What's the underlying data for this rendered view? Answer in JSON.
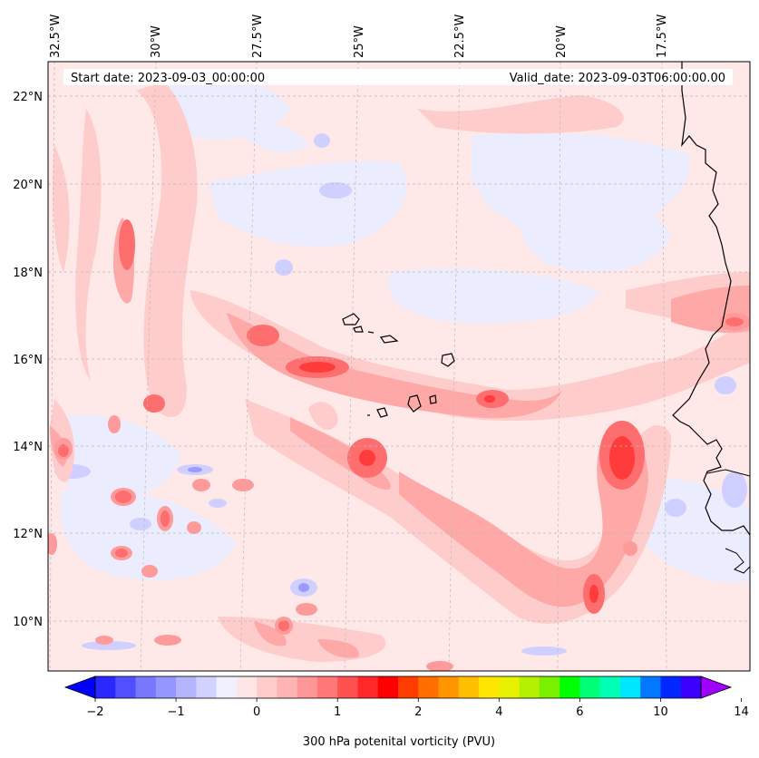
{
  "header": {
    "start_date": "Start date: 2023-09-03_00:00:00",
    "valid_date": "Valid_date: 2023-09-03T06:00:00.00"
  },
  "longitude_labels": [
    "32.5°W",
    "30°W",
    "27.5°W",
    "25°W",
    "22.5°W",
    "20°W",
    "17.5°W"
  ],
  "latitude_labels": [
    "22°N",
    "20°N",
    "18°N",
    "16°N",
    "14°N",
    "12°N",
    "10°N"
  ],
  "colorbar": {
    "label": "300 hPa potenital vorticity (PVU)",
    "tick_labels": [
      "−2",
      "−1",
      "0",
      "1",
      "2",
      "4",
      "6",
      "10",
      "14"
    ],
    "colors": [
      "#0000ff",
      "#2828ff",
      "#5050ff",
      "#7878ff",
      "#9696ff",
      "#b4b4ff",
      "#d2d2ff",
      "#f0f0ff",
      "#ffe6e6",
      "#ffcccc",
      "#ffb4b4",
      "#ff9696",
      "#ff7878",
      "#ff5050",
      "#ff2828",
      "#ff0000",
      "#ff3c00",
      "#ff6e00",
      "#ff9600",
      "#ffbe00",
      "#ffe600",
      "#e6f000",
      "#b4f000",
      "#78f000",
      "#00ff00",
      "#00ff78",
      "#00ffb4",
      "#00e6ff",
      "#0078ff",
      "#0028ff",
      "#3c00ff",
      "#a000ff"
    ]
  }
}
